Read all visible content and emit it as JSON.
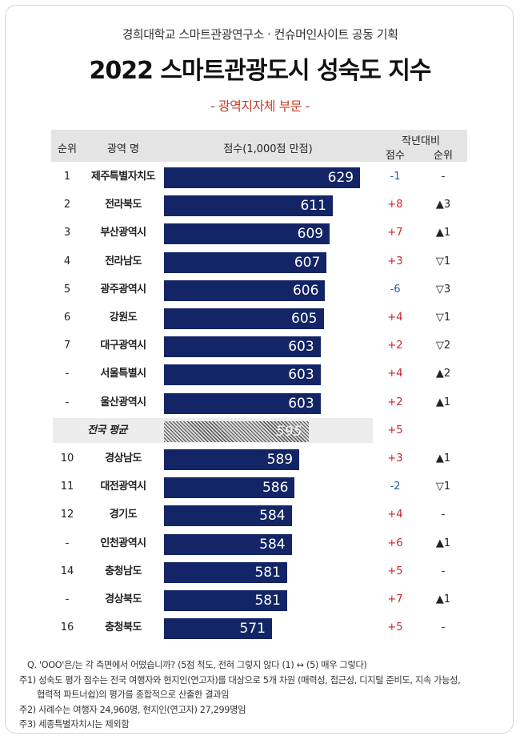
{
  "header": {
    "subtitle": "경희대학교 스마트관광연구소 · 컨슈머인사이트 공동 기획",
    "title": "2022 스마트관광도시 성숙도 지수",
    "section": "- 광역지자체 부문 -"
  },
  "columns": {
    "rank": "순위",
    "region": "광역 명",
    "score": "점수(1,000점 만점)",
    "yoy_group": "작년대비",
    "yoy_score": "점수",
    "yoy_rank": "순위"
  },
  "chart_data": {
    "type": "bar",
    "orientation": "horizontal",
    "title": "2022 스마트관광도시 성숙도 지수",
    "xlabel": "점수(1,000점 만점)",
    "categories": [
      "제주특별자치도",
      "전라북도",
      "부산광역시",
      "전라남도",
      "광주광역시",
      "강원도",
      "대구광역시",
      "서울특별시",
      "울산광역시",
      "전국 평균",
      "경상남도",
      "대전광역시",
      "경기도",
      "인천광역시",
      "충청남도",
      "경상북도",
      "충청북도"
    ],
    "values": [
      629,
      611,
      609,
      607,
      606,
      605,
      603,
      603,
      603,
      595,
      589,
      586,
      584,
      584,
      581,
      581,
      571
    ],
    "rows": [
      {
        "rank": "1",
        "region": "제주특별자치도",
        "score": 629,
        "score_label": "629",
        "dscore": "-1",
        "drank": "-"
      },
      {
        "rank": "2",
        "region": "전라북도",
        "score": 611,
        "score_label": "611",
        "dscore": "+8",
        "drank": "▲3"
      },
      {
        "rank": "3",
        "region": "부산광역시",
        "score": 609,
        "score_label": "609",
        "dscore": "+7",
        "drank": "▲1"
      },
      {
        "rank": "4",
        "region": "전라남도",
        "score": 607,
        "score_label": "607",
        "dscore": "+3",
        "drank": "▽1"
      },
      {
        "rank": "5",
        "region": "광주광역시",
        "score": 606,
        "score_label": "606",
        "dscore": "-6",
        "drank": "▽3"
      },
      {
        "rank": "6",
        "region": "강원도",
        "score": 605,
        "score_label": "605",
        "dscore": "+4",
        "drank": "▽1"
      },
      {
        "rank": "7",
        "region": "대구광역시",
        "score": 603,
        "score_label": "603",
        "dscore": "+2",
        "drank": "▽2"
      },
      {
        "rank": "-",
        "region": "서울특별시",
        "score": 603,
        "score_label": "603",
        "dscore": "+4",
        "drank": "▲2"
      },
      {
        "rank": "-",
        "region": "울산광역시",
        "score": 603,
        "score_label": "603",
        "dscore": "+2",
        "drank": "▲1"
      },
      {
        "rank": "",
        "region": "전국 평균",
        "score": 595,
        "score_label": "595",
        "dscore": "+5",
        "drank": "",
        "average": true
      },
      {
        "rank": "10",
        "region": "경상남도",
        "score": 589,
        "score_label": "589",
        "dscore": "+3",
        "drank": "▲1"
      },
      {
        "rank": "11",
        "region": "대전광역시",
        "score": 586,
        "score_label": "586",
        "dscore": "-2",
        "drank": "▽1"
      },
      {
        "rank": "12",
        "region": "경기도",
        "score": 584,
        "score_label": "584",
        "dscore": "+4",
        "drank": "-"
      },
      {
        "rank": "-",
        "region": "인천광역시",
        "score": 584,
        "score_label": "584",
        "dscore": "+6",
        "drank": "▲1"
      },
      {
        "rank": "14",
        "region": "충청남도",
        "score": 581,
        "score_label": "581",
        "dscore": "+5",
        "drank": "-"
      },
      {
        "rank": "-",
        "region": "경상북도",
        "score": 581,
        "score_label": "581",
        "dscore": "+7",
        "drank": "▲1"
      },
      {
        "rank": "16",
        "region": "충청북도",
        "score": 571,
        "score_label": "571",
        "dscore": "+5",
        "drank": "-"
      }
    ],
    "colors": {
      "bar": "#132566",
      "positive": "#d0202a",
      "negative": "#1f5faa"
    }
  },
  "notes": [
    "Q. 'OOO'은/는 각 측면에서 어떴습니까? (5점 척도, 전혀 그렇지 않다 (1) ↔ (5) 매우 그렇다)",
    "주1) 성숙도 평가 점수는 전국 여행자와 현지인(연고자)를 대상으로 5개 차원 (매력성, 접근성, 디지털 준비도, 지속 가능성,",
    "협력적 파트너쉽)의 평가를 종합적으로 산출한 결과임",
    "주2) 사례수는 여행자 24,960명, 현지인(연고자) 27,299명임",
    "주3) 세종특별자치시는 제외함"
  ]
}
